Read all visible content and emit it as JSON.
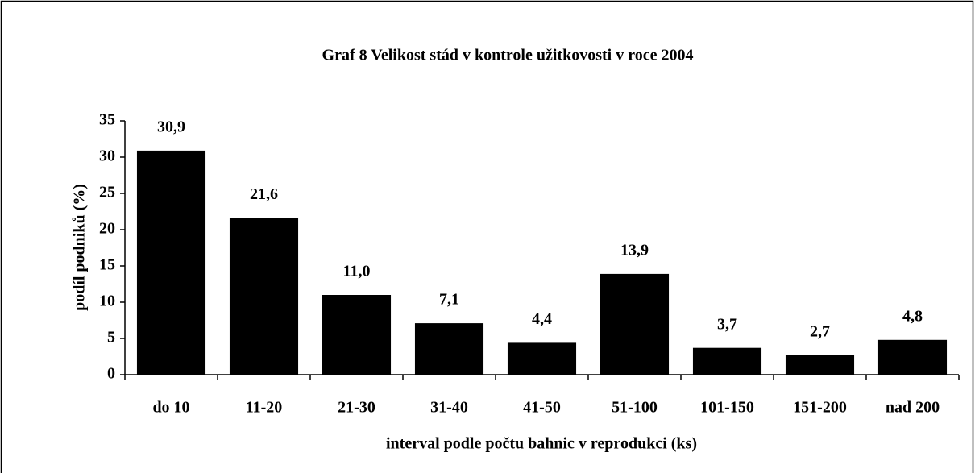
{
  "chart_data": {
    "type": "bar",
    "title": "Graf 8 Velikost stád v kontrole užitkovosti v roce 2004",
    "x_label": "interval podle počtu bahnic v reprodukci (ks)",
    "y_label": "podíl podniků (%)",
    "categories": [
      "do 10",
      "11-20",
      "21-30",
      "31-40",
      "41-50",
      "51-100",
      "101-150",
      "151-200",
      "nad 200"
    ],
    "values": [
      30.9,
      21.6,
      11.0,
      7.1,
      4.4,
      13.9,
      3.7,
      2.7,
      4.8
    ],
    "value_labels": [
      "30,9",
      "21,6",
      "11,0",
      "7,1",
      "4,4",
      "13,9",
      "3,7",
      "2,7",
      "4,8"
    ],
    "color": "#000000",
    "ylim": [
      0,
      35
    ],
    "yticks": [
      0,
      5,
      10,
      15,
      20,
      25,
      30,
      35
    ],
    "grid": false
  }
}
